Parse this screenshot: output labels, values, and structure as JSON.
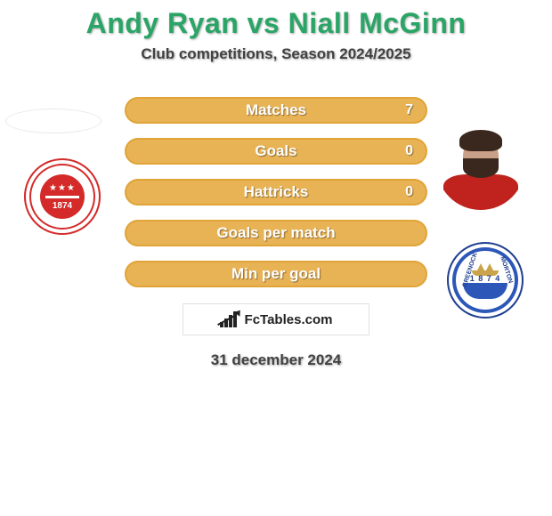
{
  "title": {
    "text": "Andy Ryan vs Niall McGinn",
    "color": "#2aa566",
    "fontsize": 32
  },
  "subtitle": {
    "text": "Club competitions, Season 2024/2025",
    "color": "#414141",
    "fontsize": 17
  },
  "date": {
    "text": "31 december 2024",
    "color": "#414141"
  },
  "footer_brand": "FcTables.com",
  "player_left": {
    "name": "Andy Ryan"
  },
  "player_right": {
    "name": "Niall McGinn"
  },
  "club_left": {
    "name": "Hamilton Academical",
    "year": "1874",
    "ring_color": "#d42a2a"
  },
  "club_right": {
    "name": "Greenock Morton",
    "year": "1 8 7 4",
    "ring_color": "#2c57b8"
  },
  "bars": {
    "border_color": "#e0a438",
    "fill_color": "#e8b355",
    "text_color": "#ffffff",
    "height": 30,
    "radius": 16,
    "items": [
      {
        "label": "Matches",
        "value": "7",
        "show_value": true
      },
      {
        "label": "Goals",
        "value": "0",
        "show_value": true
      },
      {
        "label": "Hattricks",
        "value": "0",
        "show_value": true
      },
      {
        "label": "Goals per match",
        "value": "",
        "show_value": false
      },
      {
        "label": "Min per goal",
        "value": "",
        "show_value": false
      }
    ]
  }
}
